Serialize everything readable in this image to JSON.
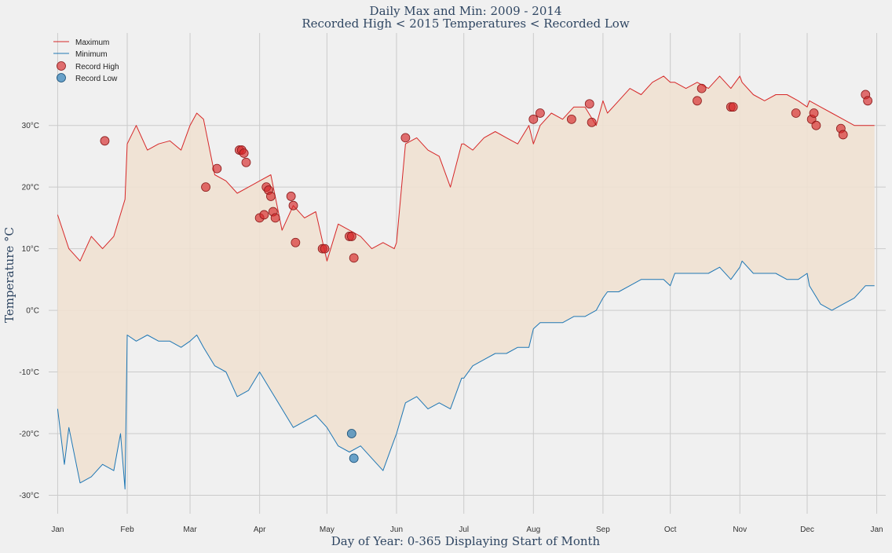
{
  "chart_data": {
    "type": "line",
    "title": "Daily Max and Min: 2009 - 2014",
    "subtitle": "Recorded High < 2015 Temperatures < Recorded Low",
    "xlabel": "Day of Year: 0-365 Displaying Start of Month",
    "ylabel": "Temperature °C",
    "xlim": [
      -4,
      369
    ],
    "ylim": [
      -33,
      45
    ],
    "grid": true,
    "legend_position": "top-left",
    "x_ticks": [
      {
        "value": 0,
        "label": "Jan"
      },
      {
        "value": 31,
        "label": "Feb"
      },
      {
        "value": 59,
        "label": "Mar"
      },
      {
        "value": 90,
        "label": "Apr"
      },
      {
        "value": 120,
        "label": "May"
      },
      {
        "value": 151,
        "label": "Jun"
      },
      {
        "value": 181,
        "label": "Jul"
      },
      {
        "value": 212,
        "label": "Aug"
      },
      {
        "value": 243,
        "label": "Sep"
      },
      {
        "value": 273,
        "label": "Oct"
      },
      {
        "value": 304,
        "label": "Nov"
      },
      {
        "value": 334,
        "label": "Dec"
      },
      {
        "value": 365,
        "label": "Jan"
      }
    ],
    "y_ticks": [
      {
        "value": -30,
        "label": "-30°C"
      },
      {
        "value": -20,
        "label": "-20°C"
      },
      {
        "value": -10,
        "label": "-10°C"
      },
      {
        "value": 0,
        "label": "0°C"
      },
      {
        "value": 10,
        "label": "10°C"
      },
      {
        "value": 20,
        "label": "20°C"
      },
      {
        "value": 30,
        "label": "30°C"
      }
    ],
    "fill_color": "#f0e1d2",
    "series": [
      {
        "name": "Maximum",
        "color": "#d62728",
        "x": [
          0,
          5,
          10,
          15,
          20,
          25,
          30,
          31,
          35,
          40,
          45,
          50,
          55,
          59,
          62,
          65,
          70,
          75,
          80,
          85,
          90,
          95,
          100,
          105,
          110,
          115,
          120,
          125,
          130,
          135,
          140,
          145,
          150,
          151,
          155,
          160,
          165,
          170,
          175,
          180,
          181,
          185,
          190,
          195,
          200,
          205,
          210,
          212,
          215,
          220,
          225,
          230,
          235,
          240,
          243,
          245,
          250,
          255,
          260,
          265,
          270,
          273,
          275,
          280,
          285,
          290,
          295,
          300,
          304,
          305,
          310,
          315,
          320,
          325,
          330,
          334,
          335,
          340,
          345,
          350,
          355,
          360,
          364
        ],
        "y": [
          15.5,
          10,
          8,
          12,
          10,
          12,
          18,
          27,
          30,
          26,
          27,
          27.5,
          26,
          30,
          32,
          31,
          22,
          21,
          19,
          20,
          21,
          22,
          13,
          17,
          15,
          16,
          8,
          14,
          13,
          12,
          10,
          11,
          10,
          11,
          27,
          28,
          26,
          25,
          20,
          27,
          27,
          26,
          28,
          29,
          28,
          27,
          30,
          27,
          30,
          32,
          31,
          33,
          33,
          30,
          34,
          32,
          34,
          36,
          35,
          37,
          38,
          37,
          37,
          36,
          37,
          36,
          38,
          36,
          38,
          37,
          35,
          34,
          35,
          35,
          34,
          33,
          34,
          33,
          32,
          31,
          30,
          30,
          30
        ]
      },
      {
        "name": "Minimum",
        "color": "#1f77b4",
        "x": [
          0,
          3,
          5,
          10,
          15,
          20,
          25,
          28,
          30,
          31,
          35,
          40,
          45,
          50,
          55,
          59,
          62,
          65,
          70,
          75,
          80,
          85,
          90,
          95,
          100,
          105,
          110,
          115,
          120,
          125,
          130,
          135,
          140,
          145,
          150,
          151,
          155,
          160,
          165,
          170,
          175,
          180,
          181,
          185,
          190,
          195,
          200,
          205,
          210,
          212,
          215,
          220,
          225,
          230,
          235,
          240,
          243,
          245,
          250,
          255,
          260,
          265,
          270,
          273,
          275,
          280,
          285,
          290,
          295,
          300,
          304,
          305,
          310,
          315,
          320,
          325,
          330,
          334,
          335,
          340,
          345,
          350,
          355,
          360,
          364
        ],
        "y": [
          -16,
          -25,
          -19,
          -28,
          -27,
          -25,
          -26,
          -20,
          -29,
          -4,
          -5,
          -4,
          -5,
          -5,
          -6,
          -5,
          -4,
          -6,
          -9,
          -10,
          -14,
          -13,
          -10,
          -13,
          -16,
          -19,
          -18,
          -17,
          -19,
          -22,
          -23,
          -22,
          -24,
          -26,
          -21,
          -20,
          -15,
          -14,
          -16,
          -15,
          -16,
          -11,
          -11,
          -9,
          -8,
          -7,
          -7,
          -6,
          -6,
          -3,
          -2,
          -2,
          -2,
          -1,
          -1,
          0,
          2,
          3,
          3,
          4,
          5,
          5,
          5,
          4,
          6,
          6,
          6,
          6,
          7,
          5,
          7,
          8,
          6,
          6,
          6,
          5,
          5,
          6,
          4,
          1,
          0,
          1,
          2,
          4,
          4
        ]
      }
    ],
    "scatter": [
      {
        "name": "Record High",
        "color": "#d62728",
        "x": [
          21,
          66,
          71,
          81,
          82,
          83,
          84,
          90,
          92,
          93,
          94,
          95,
          96,
          97,
          104,
          105,
          106,
          118,
          119,
          130,
          131,
          132,
          155,
          212,
          215,
          229,
          237,
          238,
          285,
          287,
          300,
          301,
          329,
          336,
          337,
          338,
          349,
          350,
          360,
          361
        ],
        "y": [
          27.5,
          20,
          23,
          26,
          26,
          25.5,
          24,
          15,
          15.5,
          20,
          19.5,
          18.5,
          16,
          15,
          18.5,
          17,
          11,
          10,
          10,
          12,
          12,
          8.5,
          28,
          31,
          32,
          31,
          33.5,
          30.5,
          34,
          36,
          33,
          33,
          32,
          31,
          32,
          30,
          29.5,
          28.5,
          35,
          34
        ]
      },
      {
        "name": "Record Low",
        "color": "#1f77b4",
        "x": [
          131,
          132
        ],
        "y": [
          -20,
          -24
        ]
      }
    ]
  }
}
